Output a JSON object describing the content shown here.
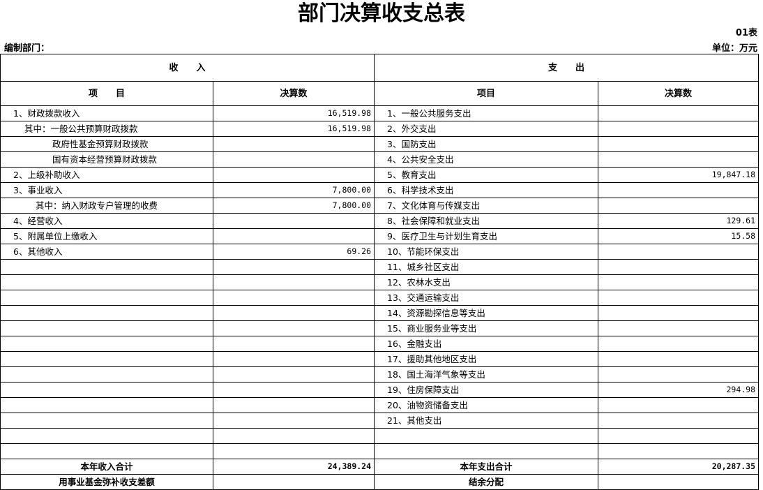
{
  "header": {
    "title": "部门决算收支总表",
    "table_no": "01表",
    "department_label": "编制部门：",
    "unit": "单位：万元"
  },
  "table": {
    "section_headers": [
      "收　　入",
      "支　　出"
    ],
    "column_headers": [
      "项　　目",
      "决算数",
      "项目",
      "决算数"
    ],
    "rows": [
      [
        "1、财政拨款收入",
        "16,519.98",
        "1、一般公共服务支出",
        null
      ],
      [
        "其中：一般公共预算财政拨款",
        "16,519.98",
        "2、外交支出",
        null
      ],
      [
        "政府性基金预算财政拨款",
        null,
        "3、国防支出",
        null
      ],
      [
        "国有资本经营预算财政拨款",
        null,
        "4、公共安全支出",
        null
      ],
      [
        "2、上级补助收入",
        null,
        "5、教育支出",
        "19,847.18"
      ],
      [
        "3、事业收入",
        "7,800.00",
        "6、科学技术支出",
        null
      ],
      [
        "其中：纳入财政专户管理的收费",
        "7,800.00",
        "7、文化体育与传媒支出",
        null
      ],
      [
        "4、经营收入",
        null,
        "8、社会保障和就业支出",
        "129.61"
      ],
      [
        "5、附属单位上缴收入",
        null,
        "9、医疗卫生与计划生育支出",
        "15.58"
      ],
      [
        "6、其他收入",
        "69.26",
        "10、节能环保支出",
        null
      ],
      [
        null,
        null,
        "11、城乡社区支出",
        null
      ],
      [
        null,
        null,
        "12、农林水支出",
        null
      ],
      [
        null,
        null,
        "13、交通运输支出",
        null
      ],
      [
        null,
        null,
        "14、资源勘探信息等支出",
        null
      ],
      [
        null,
        null,
        "15、商业服务业等支出",
        null
      ],
      [
        null,
        null,
        "16、金融支出",
        null
      ],
      [
        null,
        null,
        "17、援助其他地区支出",
        null
      ],
      [
        null,
        null,
        "18、国土海洋气象等支出",
        null
      ],
      [
        null,
        null,
        "19、住房保障支出",
        "294.98"
      ],
      [
        null,
        null,
        "20、油物资储备支出",
        null
      ],
      [
        null,
        null,
        "21、其他支出",
        null
      ]
    ],
    "totals": [
      "本年收入合计",
      "24,389.24",
      "本年支出合计",
      "20,287.35"
    ],
    "last_row": [
      "用事业基金弥补收支差额",
      "结余分配"
    ]
  }
}
